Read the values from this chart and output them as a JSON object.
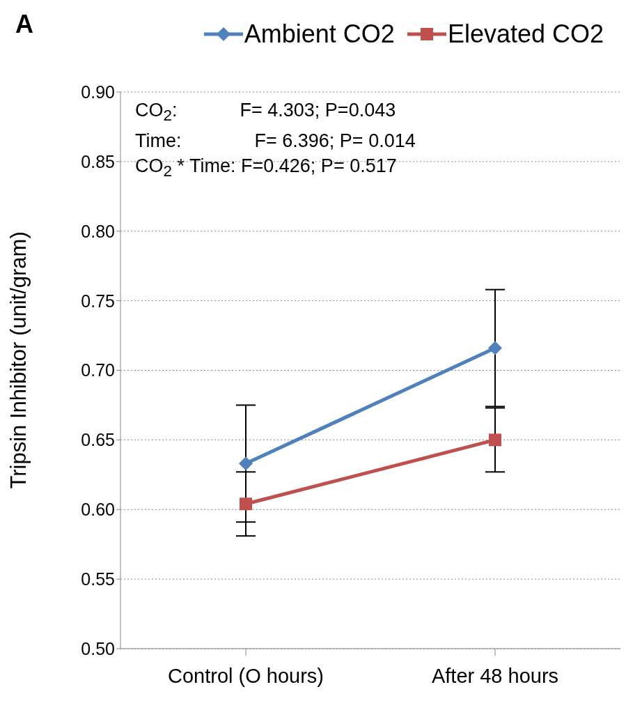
{
  "chart_data": {
    "type": "line",
    "title": "A",
    "ylabel": "Tripsin Inhibitor (unit/gram)",
    "categories": [
      "Control (O hours)",
      "After 48 hours"
    ],
    "series": [
      {
        "name": "Ambient CO2",
        "color": "#4f81bd",
        "marker": "diamond",
        "values": [
          0.633,
          0.716
        ],
        "errors": [
          0.042,
          0.042
        ]
      },
      {
        "name": "Elevated CO2",
        "color": "#c0504d",
        "marker": "square",
        "values": [
          0.604,
          0.65
        ],
        "errors": [
          0.023,
          0.023
        ]
      }
    ],
    "ylim": [
      0.5,
      0.9
    ],
    "yticks": [
      {
        "value": 0.5,
        "label": "0.50"
      },
      {
        "value": 0.55,
        "label": "0.55"
      },
      {
        "value": 0.6,
        "label": "0.60"
      },
      {
        "value": 0.65,
        "label": "0.65"
      },
      {
        "value": 0.7,
        "label": "0.70"
      },
      {
        "value": 0.75,
        "label": "0.75"
      },
      {
        "value": 0.8,
        "label": "0.80"
      },
      {
        "value": 0.85,
        "label": "0.85"
      },
      {
        "value": 0.9,
        "label": "0.90"
      }
    ],
    "grid": "y",
    "legend": "top right",
    "line_style": "solid",
    "annotations": [
      "CO$_{2}$:            F= 4.303; P=0.043",
      "Time:              F= 6.396; P= 0.014",
      "CO$_{2}$ * Time: F=0.426; P= 0.517"
    ]
  }
}
